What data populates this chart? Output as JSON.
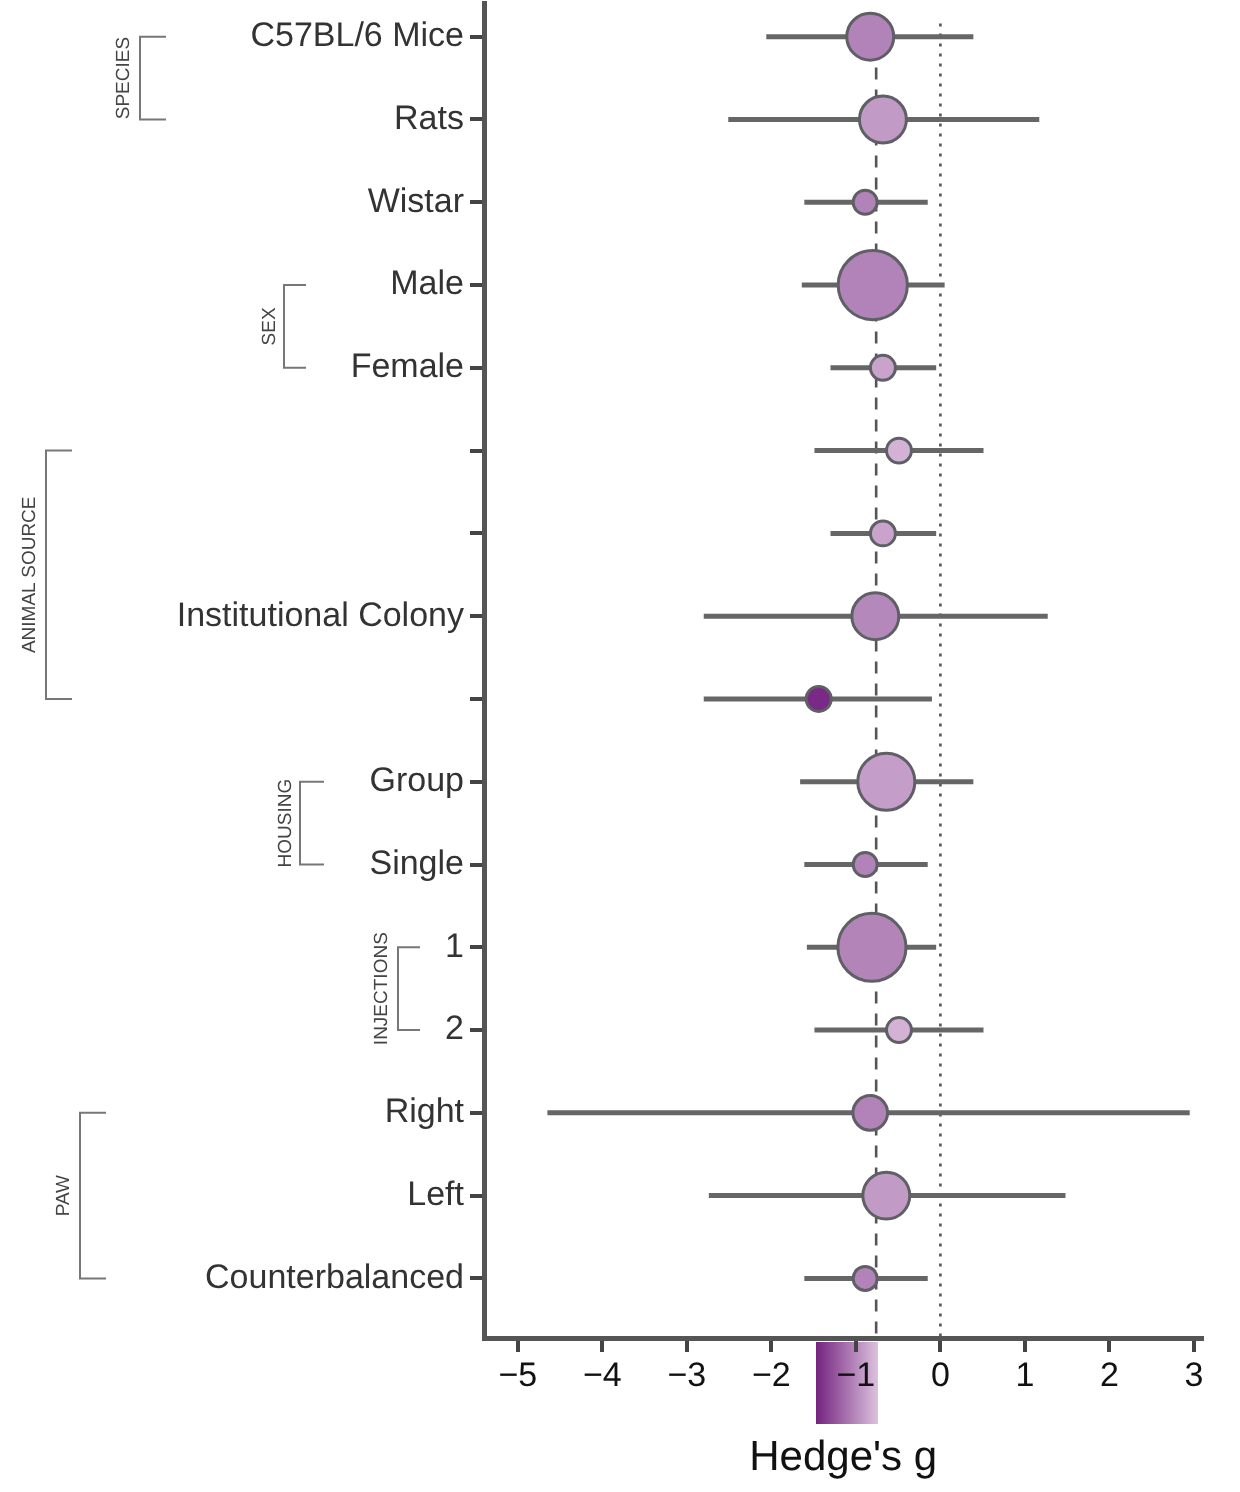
{
  "chart_data": {
    "type": "bubble",
    "orientation": "horizontal",
    "xlabel": "Hedge's g",
    "categories": [
      "C57BL/6 Mice",
      "Rats",
      "Wistar",
      "Male",
      "Female",
      null,
      null,
      "Institutional Colony",
      null,
      "Group",
      "Single",
      "1",
      "2",
      "Right",
      "Left",
      "Counterbalanced"
    ],
    "values": [
      -0.83,
      -0.68,
      -0.89,
      -0.8,
      -0.68,
      -0.49,
      -0.68,
      -0.77,
      -1.44,
      -0.64,
      -0.89,
      -0.81,
      -0.49,
      -0.83,
      -0.64,
      -0.89
    ],
    "errors": [
      [
        -2.06,
        0.39
      ],
      [
        -2.51,
        1.17
      ],
      [
        -1.61,
        -0.15
      ],
      [
        -1.64,
        0.05
      ],
      [
        -1.3,
        -0.05
      ],
      [
        -1.49,
        0.51
      ],
      [
        -1.3,
        -0.05
      ],
      [
        -2.8,
        1.27
      ],
      [
        -2.8,
        -0.1
      ],
      [
        -1.66,
        0.39
      ],
      [
        -1.61,
        -0.15
      ],
      [
        -1.58,
        -0.05
      ],
      [
        -1.49,
        0.51
      ],
      [
        -4.65,
        2.95
      ],
      [
        -2.74,
        1.48
      ],
      [
        -1.61,
        -0.15
      ]
    ],
    "sizes": [
      0.46,
      0.46,
      0.12,
      1,
      0.13,
      0.13,
      0.13,
      0.46,
      0.13,
      0.68,
      0.12,
      0.97,
      0.13,
      0.25,
      0.46,
      0.12
    ],
    "colors": [
      "#b283b8",
      "#c29ac6",
      "#b283b8",
      "#b283b8",
      "#c9a3cc",
      "#d4b2d6",
      "#c9a3cc",
      "#b588bb",
      "#7a2a86",
      "#c49dc8",
      "#b283b8",
      "#b384b8",
      "#d4b2d6",
      "#b283b8",
      "#c29ac6",
      "#b283b8"
    ],
    "xlim": [
      -5.4,
      3.1
    ],
    "xticks": [
      {
        "value": -5,
        "label": "−5"
      },
      {
        "value": -4,
        "label": "−4"
      },
      {
        "value": -3,
        "label": "−3"
      },
      {
        "value": -2,
        "label": "−2"
      },
      {
        "value": -1,
        "label": "−1"
      },
      0,
      1,
      2,
      3
    ],
    "ref_lines": [
      {
        "axis": "x",
        "value": -0.76,
        "line_style": "dashed"
      },
      {
        "axis": "x",
        "value": 0,
        "line_style": "dotted"
      }
    ],
    "annotations": [
      "SPECIES",
      "SEX",
      "ANIMAL SOURCE",
      "HOUSING",
      "INJECTIONS",
      "PAW"
    ],
    "grid": false,
    "legend": false
  }
}
